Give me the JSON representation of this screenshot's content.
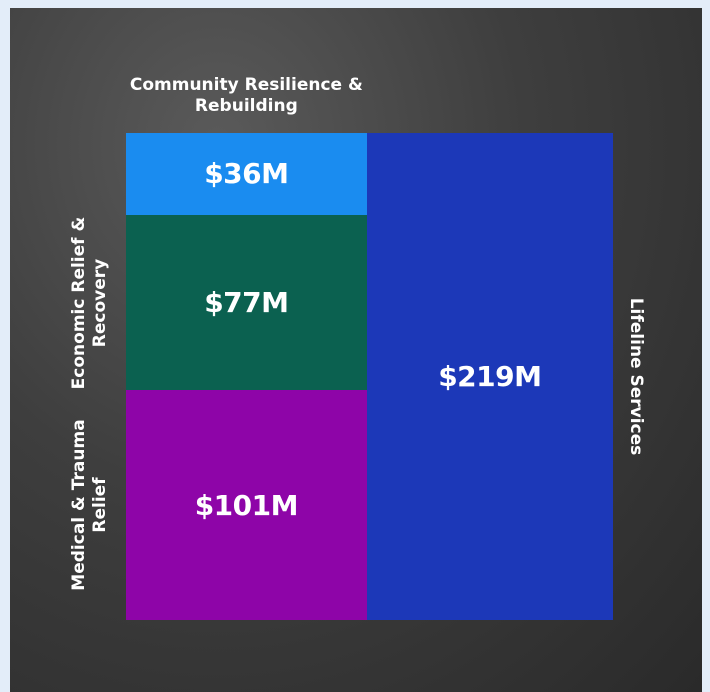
{
  "chart_data": {
    "type": "treemap",
    "categories": [
      "Community Resilience & Rebuilding",
      "Economic Relief & Recovery",
      "Medical & Trauma Relief",
      "Lifeline Services"
    ],
    "values": [
      36,
      77,
      101,
      219
    ],
    "value_labels": [
      "$36M",
      "$77M",
      "$101M",
      "$219M"
    ],
    "colors": [
      "#1a8cf0",
      "#0b6150",
      "#8e05a8",
      "#1c38b8"
    ]
  }
}
